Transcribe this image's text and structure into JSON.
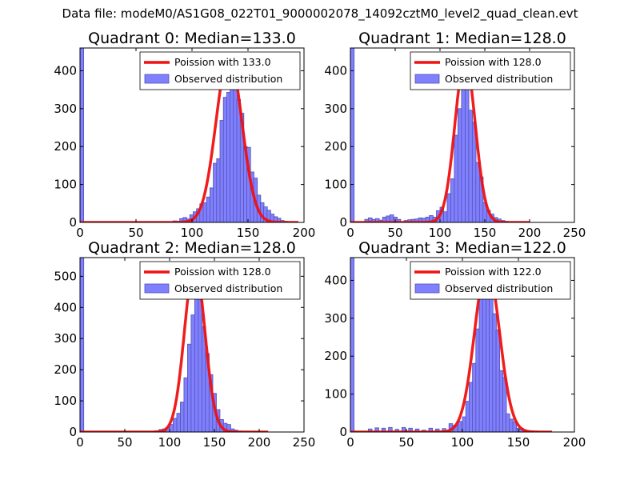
{
  "suptitle": "Data file: modeM0/AS1G08_022T01_9000002078_14092cztM0_level2_quad_clean.evt",
  "colors": {
    "poisson": "#ee1111",
    "hist_fill": "#8080ff",
    "hist_edge": "#5050b0",
    "axis": "#000000"
  },
  "chart_data": [
    {
      "type": "histogram",
      "title": "Quadrant 0: Median=133.0",
      "xlim": [
        0,
        200
      ],
      "ylim": [
        0,
        460
      ],
      "xticks": [
        0,
        50,
        100,
        150,
        200
      ],
      "yticks": [
        0,
        100,
        200,
        300,
        400
      ],
      "bin_width": 3.3,
      "legend": [
        "Poission with 133.0",
        "Observed distribution"
      ],
      "zero_bin": 460,
      "poisson_mean": 133.0,
      "poisson_peak": 440,
      "poisson_range": [
        0,
        195
      ],
      "bins": [
        [
          83,
          4
        ],
        [
          86,
          3
        ],
        [
          89,
          10
        ],
        [
          92,
          13
        ],
        [
          95,
          9
        ],
        [
          98,
          20
        ],
        [
          101,
          28
        ],
        [
          104,
          36
        ],
        [
          107,
          49
        ],
        [
          110,
          52
        ],
        [
          113,
          67
        ],
        [
          116,
          91
        ],
        [
          119,
          156
        ],
        [
          122,
          168
        ],
        [
          125,
          269
        ],
        [
          128,
          330
        ],
        [
          131,
          343
        ],
        [
          134,
          385
        ],
        [
          137,
          360
        ],
        [
          140,
          324
        ],
        [
          143,
          288
        ],
        [
          146,
          200
        ],
        [
          149,
          198
        ],
        [
          152,
          133
        ],
        [
          155,
          117
        ],
        [
          158,
          72
        ],
        [
          161,
          52
        ],
        [
          164,
          41
        ],
        [
          167,
          32
        ],
        [
          170,
          22
        ],
        [
          173,
          15
        ],
        [
          176,
          11
        ],
        [
          179,
          5
        ],
        [
          182,
          3
        ]
      ]
    },
    {
      "type": "histogram",
      "title": "Quadrant 1: Median=128.0",
      "xlim": [
        0,
        250
      ],
      "ylim": [
        0,
        460
      ],
      "xticks": [
        0,
        50,
        100,
        150,
        200,
        250
      ],
      "yticks": [
        0,
        100,
        200,
        300,
        400
      ],
      "bin_width": 4.2,
      "legend": [
        "Poission with 128.0",
        "Observed distribution"
      ],
      "zero_bin": 460,
      "poisson_mean": 128.0,
      "poisson_peak": 430,
      "poisson_range": [
        0,
        200
      ],
      "bins": [
        [
          16,
          8
        ],
        [
          20,
          12
        ],
        [
          24,
          8
        ],
        [
          28,
          10
        ],
        [
          32,
          6
        ],
        [
          36,
          14
        ],
        [
          40,
          17
        ],
        [
          44,
          20
        ],
        [
          48,
          14
        ],
        [
          52,
          8
        ],
        [
          60,
          5
        ],
        [
          64,
          7
        ],
        [
          68,
          8
        ],
        [
          72,
          9
        ],
        [
          76,
          12
        ],
        [
          80,
          11
        ],
        [
          84,
          14
        ],
        [
          88,
          18
        ],
        [
          92,
          14
        ],
        [
          96,
          31
        ],
        [
          100,
          40
        ],
        [
          104,
          28
        ],
        [
          108,
          76
        ],
        [
          112,
          115
        ],
        [
          116,
          230
        ],
        [
          120,
          300
        ],
        [
          124,
          386
        ],
        [
          128,
          358
        ],
        [
          132,
          296
        ],
        [
          136,
          264
        ],
        [
          140,
          158
        ],
        [
          144,
          120
        ],
        [
          148,
          52
        ],
        [
          152,
          32
        ],
        [
          156,
          22
        ],
        [
          160,
          13
        ],
        [
          164,
          9
        ],
        [
          168,
          5
        ],
        [
          172,
          3
        ]
      ]
    },
    {
      "type": "histogram",
      "title": "Quadrant 2: Median=128.0",
      "xlim": [
        0,
        250
      ],
      "ylim": [
        0,
        560
      ],
      "xticks": [
        0,
        50,
        100,
        150,
        200,
        250
      ],
      "yticks": [
        0,
        100,
        200,
        300,
        400,
        500
      ],
      "bin_width": 4.2,
      "legend": [
        "Poission with 128.0",
        "Observed distribution"
      ],
      "zero_bin": 560,
      "poisson_mean": 128.0,
      "poisson_peak": 540,
      "poisson_range": [
        0,
        210
      ],
      "bins": [
        [
          84,
          4
        ],
        [
          88,
          8
        ],
        [
          92,
          10
        ],
        [
          96,
          14
        ],
        [
          100,
          24
        ],
        [
          104,
          44
        ],
        [
          108,
          60
        ],
        [
          112,
          96
        ],
        [
          116,
          174
        ],
        [
          120,
          282
        ],
        [
          124,
          376
        ],
        [
          128,
          470
        ],
        [
          132,
          445
        ],
        [
          136,
          338
        ],
        [
          140,
          252
        ],
        [
          144,
          184
        ],
        [
          148,
          124
        ],
        [
          152,
          72
        ],
        [
          156,
          40
        ],
        [
          160,
          28
        ],
        [
          164,
          24
        ],
        [
          168,
          10
        ],
        [
          172,
          6
        ],
        [
          176,
          3
        ]
      ]
    },
    {
      "type": "histogram",
      "title": "Quadrant 3: Median=122.0",
      "xlim": [
        0,
        200
      ],
      "ylim": [
        0,
        460
      ],
      "xticks": [
        0,
        50,
        100,
        150,
        200
      ],
      "yticks": [
        0,
        100,
        200,
        300,
        400
      ],
      "bin_width": 3.3,
      "legend": [
        "Poission with 122.0",
        "Observed distribution"
      ],
      "zero_bin": 460,
      "poisson_mean": 122.0,
      "poisson_peak": 440,
      "poisson_range": [
        0,
        180
      ],
      "bins": [
        [
          16,
          8
        ],
        [
          22,
          11
        ],
        [
          28,
          10
        ],
        [
          34,
          12
        ],
        [
          40,
          7
        ],
        [
          46,
          12
        ],
        [
          52,
          10
        ],
        [
          58,
          8
        ],
        [
          64,
          5
        ],
        [
          70,
          10
        ],
        [
          76,
          8
        ],
        [
          82,
          9
        ],
        [
          88,
          22
        ],
        [
          92,
          18
        ],
        [
          96,
          28
        ],
        [
          100,
          40
        ],
        [
          103,
          81
        ],
        [
          106,
          131
        ],
        [
          109,
          181
        ],
        [
          112,
          272
        ],
        [
          115,
          397
        ],
        [
          118,
          412
        ],
        [
          121,
          365
        ],
        [
          124,
          394
        ],
        [
          127,
          312
        ],
        [
          130,
          269
        ],
        [
          133,
          162
        ],
        [
          136,
          144
        ],
        [
          139,
          48
        ],
        [
          142,
          34
        ],
        [
          145,
          27
        ],
        [
          148,
          10
        ],
        [
          151,
          10
        ],
        [
          154,
          5
        ],
        [
          160,
          3
        ]
      ]
    }
  ]
}
